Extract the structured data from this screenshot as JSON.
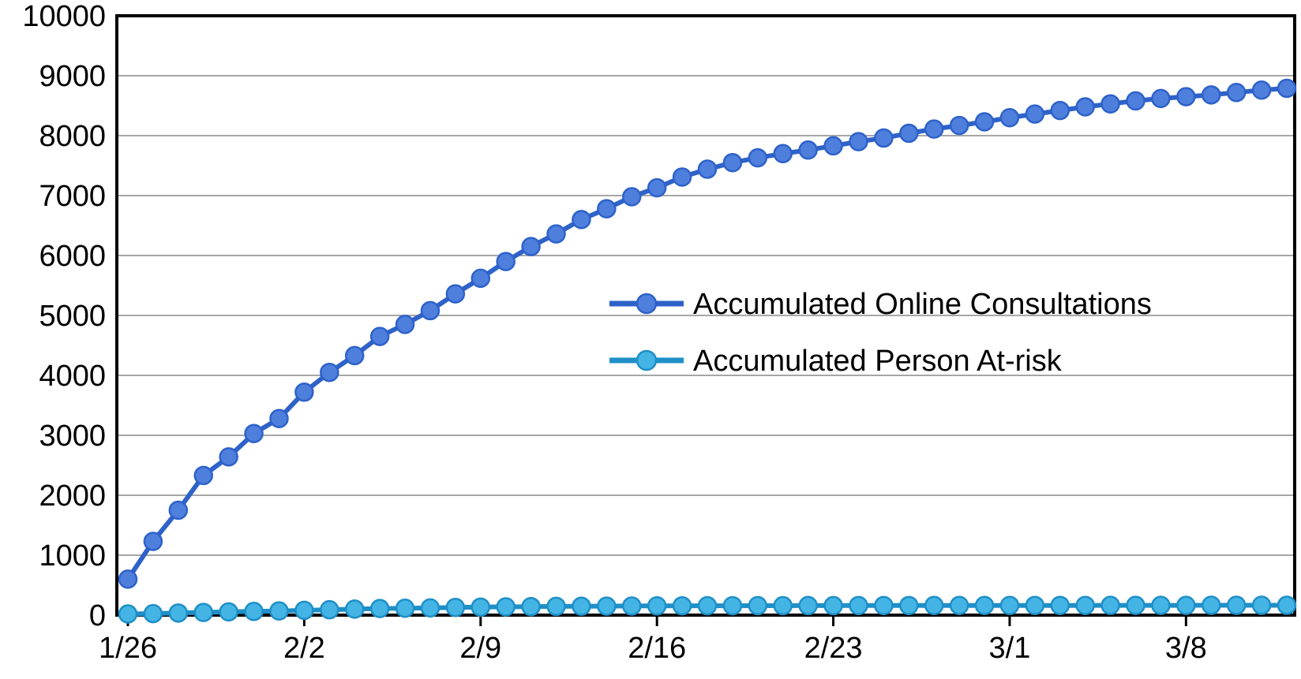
{
  "chart_data": {
    "type": "line",
    "title": "",
    "xlabel": "",
    "ylabel": "",
    "ylim": [
      0,
      10000
    ],
    "y_ticks": [
      0,
      1000,
      2000,
      3000,
      4000,
      5000,
      6000,
      7000,
      8000,
      9000,
      10000
    ],
    "y_tick_labels": [
      "0",
      "1000",
      "2000",
      "3000",
      "4000",
      "5000",
      "6000",
      "7000",
      "8000",
      "9000",
      "10000"
    ],
    "x_tick_labels": [
      "1/26",
      "2/2",
      "2/9",
      "2/16",
      "2/23",
      "3/1",
      "3/8"
    ],
    "x_tick_day_index": [
      0,
      7,
      14,
      21,
      28,
      35,
      42
    ],
    "day_count": 47,
    "grid": "horizontal",
    "legend_position": "center-right",
    "series": [
      {
        "name": "Accumulated Online Consultations",
        "color": "#2e62c9",
        "marker_color": "#4f7fdc",
        "values": [
          600,
          1230,
          1750,
          2330,
          2640,
          3030,
          3280,
          3720,
          4050,
          4330,
          4650,
          4850,
          5080,
          5360,
          5620,
          5900,
          6150,
          6360,
          6600,
          6780,
          6980,
          7130,
          7310,
          7440,
          7550,
          7630,
          7700,
          7760,
          7830,
          7900,
          7960,
          8040,
          8110,
          8170,
          8230,
          8300,
          8360,
          8420,
          8480,
          8530,
          8580,
          8620,
          8650,
          8680,
          8720,
          8760,
          8790
        ]
      },
      {
        "name": "Accumulated Person At-risk",
        "color": "#1f8fc7",
        "marker_color": "#43b4e4",
        "values": [
          20,
          25,
          35,
          45,
          55,
          62,
          70,
          80,
          90,
          100,
          110,
          115,
          120,
          128,
          134,
          138,
          142,
          146,
          148,
          150,
          152,
          154,
          155,
          156,
          157,
          158,
          158,
          159,
          159,
          160,
          160,
          160,
          161,
          161,
          161,
          162,
          162,
          162,
          162,
          163,
          163,
          163,
          163,
          164,
          164,
          164,
          164
        ]
      }
    ]
  }
}
